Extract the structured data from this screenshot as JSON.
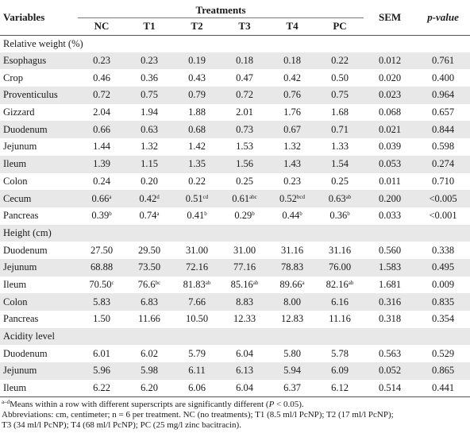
{
  "header": {
    "variables_label": "Variables",
    "treatments_label": "Treatments",
    "treatment_cols": [
      "NC",
      "T1",
      "T2",
      "T3",
      "T4",
      "PC"
    ],
    "sem_label": "SEM",
    "pvalue_label": "p-value"
  },
  "sections": [
    {
      "title": "Relative weight (%)",
      "rows": [
        {
          "label": "Esophagus",
          "values": [
            [
              "0.23",
              ""
            ],
            [
              "0.23",
              ""
            ],
            [
              "0.19",
              ""
            ],
            [
              "0.18",
              ""
            ],
            [
              "0.18",
              ""
            ],
            [
              "0.22",
              ""
            ]
          ],
          "sem": "0.012",
          "p": "0.761"
        },
        {
          "label": "Crop",
          "values": [
            [
              "0.46",
              ""
            ],
            [
              "0.36",
              ""
            ],
            [
              "0.43",
              ""
            ],
            [
              "0.47",
              ""
            ],
            [
              "0.42",
              ""
            ],
            [
              "0.50",
              ""
            ]
          ],
          "sem": "0.020",
          "p": "0.400"
        },
        {
          "label": "Proventiculus",
          "values": [
            [
              "0.72",
              ""
            ],
            [
              "0.75",
              ""
            ],
            [
              "0.79",
              ""
            ],
            [
              "0.72",
              ""
            ],
            [
              "0.76",
              ""
            ],
            [
              "0.75",
              ""
            ]
          ],
          "sem": "0.023",
          "p": "0.964"
        },
        {
          "label": "Gizzard",
          "values": [
            [
              "2.04",
              ""
            ],
            [
              "1.94",
              ""
            ],
            [
              "1.88",
              ""
            ],
            [
              "2.01",
              ""
            ],
            [
              "1.76",
              ""
            ],
            [
              "1.68",
              ""
            ]
          ],
          "sem": "0.068",
          "p": "0.657"
        },
        {
          "label": "Duodenum",
          "values": [
            [
              "0.66",
              ""
            ],
            [
              "0.63",
              ""
            ],
            [
              "0.68",
              ""
            ],
            [
              "0.73",
              ""
            ],
            [
              "0.67",
              ""
            ],
            [
              "0.71",
              ""
            ]
          ],
          "sem": "0.021",
          "p": "0.844"
        },
        {
          "label": "Jejunum",
          "values": [
            [
              "1.44",
              ""
            ],
            [
              "1.32",
              ""
            ],
            [
              "1.42",
              ""
            ],
            [
              "1.53",
              ""
            ],
            [
              "1.32",
              ""
            ],
            [
              "1.33",
              ""
            ]
          ],
          "sem": "0.039",
          "p": "0.598"
        },
        {
          "label": "Ileum",
          "values": [
            [
              "1.39",
              ""
            ],
            [
              "1.15",
              ""
            ],
            [
              "1.35",
              ""
            ],
            [
              "1.56",
              ""
            ],
            [
              "1.43",
              ""
            ],
            [
              "1.54",
              ""
            ]
          ],
          "sem": "0.053",
          "p": "0.274"
        },
        {
          "label": "Colon",
          "values": [
            [
              "0.24",
              ""
            ],
            [
              "0.20",
              ""
            ],
            [
              "0.22",
              ""
            ],
            [
              "0.25",
              ""
            ],
            [
              "0.23",
              ""
            ],
            [
              "0.25",
              ""
            ]
          ],
          "sem": "0.011",
          "p": "0.710"
        },
        {
          "label": "Cecum",
          "values": [
            [
              "0.66",
              "a"
            ],
            [
              "0.42",
              "d"
            ],
            [
              "0.51",
              "cd"
            ],
            [
              "0.61",
              "abc"
            ],
            [
              "0.52",
              "bcd"
            ],
            [
              "0.63",
              "ab"
            ]
          ],
          "sem": "0.200",
          "p": "<0.005"
        },
        {
          "label": "Pancreas",
          "values": [
            [
              "0.39",
              "b"
            ],
            [
              "0.74",
              "a"
            ],
            [
              "0.41",
              "b"
            ],
            [
              "0.29",
              "b"
            ],
            [
              "0.44",
              "b"
            ],
            [
              "0.36",
              "b"
            ]
          ],
          "sem": "0.033",
          "p": "<0.001"
        }
      ]
    },
    {
      "title": "Height (cm)",
      "rows": [
        {
          "label": "Duodenum",
          "values": [
            [
              "27.50",
              ""
            ],
            [
              "29.50",
              ""
            ],
            [
              "31.00",
              ""
            ],
            [
              "31.00",
              ""
            ],
            [
              "31.16",
              ""
            ],
            [
              "31.16",
              ""
            ]
          ],
          "sem": "0.560",
          "p": "0.338"
        },
        {
          "label": "Jejunum",
          "values": [
            [
              "68.88",
              ""
            ],
            [
              "73.50",
              ""
            ],
            [
              "72.16",
              ""
            ],
            [
              "77.16",
              ""
            ],
            [
              "78.83",
              ""
            ],
            [
              "76.00",
              ""
            ]
          ],
          "sem": "1.583",
          "p": "0.495"
        },
        {
          "label": "Ileum",
          "values": [
            [
              "70.50",
              "c"
            ],
            [
              "76.6",
              "bc"
            ],
            [
              "81.83",
              "ab"
            ],
            [
              "85.16",
              "ab"
            ],
            [
              "89.66",
              "a"
            ],
            [
              "82.16",
              "ab"
            ]
          ],
          "sem": "1.681",
          "p": "0.009"
        },
        {
          "label": "Colon",
          "values": [
            [
              "5.83",
              ""
            ],
            [
              "6.83",
              ""
            ],
            [
              "7.66",
              ""
            ],
            [
              "8.83",
              ""
            ],
            [
              "8.00",
              ""
            ],
            [
              "6.16",
              ""
            ]
          ],
          "sem": "0.316",
          "p": "0.835"
        },
        {
          "label": "Pancreas",
          "values": [
            [
              "1.50",
              ""
            ],
            [
              "11.66",
              ""
            ],
            [
              "10.50",
              ""
            ],
            [
              "12.33",
              ""
            ],
            [
              "12.83",
              ""
            ],
            [
              "11.16",
              ""
            ]
          ],
          "sem": "0.318",
          "p": "0.354"
        }
      ]
    },
    {
      "title": "Acidity level",
      "rows": [
        {
          "label": "Duodenum",
          "values": [
            [
              "6.01",
              ""
            ],
            [
              "6.02",
              ""
            ],
            [
              "5.79",
              ""
            ],
            [
              "6.04",
              ""
            ],
            [
              "5.80",
              ""
            ],
            [
              "5.78",
              ""
            ]
          ],
          "sem": "0.563",
          "p": "0.529"
        },
        {
          "label": "Jejunum",
          "values": [
            [
              "5.96",
              ""
            ],
            [
              "5.98",
              ""
            ],
            [
              "6.11",
              ""
            ],
            [
              "6.13",
              ""
            ],
            [
              "5.94",
              ""
            ],
            [
              "6.09",
              ""
            ]
          ],
          "sem": "0.052",
          "p": "0.865"
        },
        {
          "label": "Ileum",
          "values": [
            [
              "6.22",
              ""
            ],
            [
              "6.20",
              ""
            ],
            [
              "6.06",
              ""
            ],
            [
              "6.04",
              ""
            ],
            [
              "6.37",
              ""
            ],
            [
              "6.12",
              ""
            ]
          ],
          "sem": "0.514",
          "p": "0.441"
        }
      ]
    }
  ],
  "footnotes": {
    "superscript_note_sup": "a–d",
    "superscript_note_text": "Means within a row with different superscripts are significantly different (",
    "superscript_note_p": "P",
    "superscript_note_tail": " < 0.05).",
    "abbrev_line1": "Abbreviations: cm, centimeter; n = 6 per treatment. NC (no treatments); T1 (8.5 ml/l PcNP); T2 (17 ml/l PcNP);",
    "abbrev_line2": "T3 (34 ml/l PcNP); T4 (68 ml/l PcNP); PC (25 mg/l zinc bacitracin)."
  }
}
